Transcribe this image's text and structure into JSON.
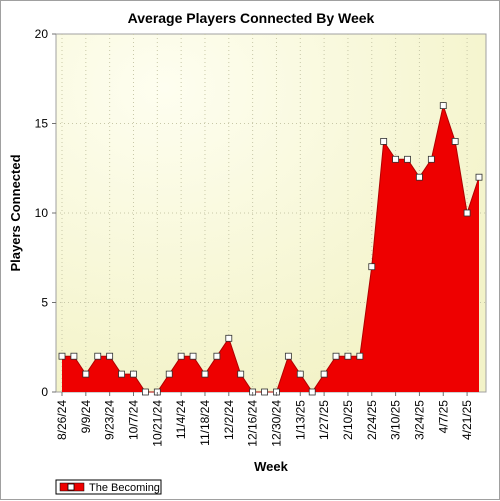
{
  "chart_data": {
    "type": "area",
    "title": "Average Players Connected By Week",
    "xlabel": "Week",
    "ylabel": "Players Connected",
    "ylim": [
      0,
      20
    ],
    "yticks": [
      0,
      5,
      10,
      15,
      20
    ],
    "x_tick_labels": [
      "8/26/24",
      "9/9/24",
      "9/23/24",
      "10/7/24",
      "10/21/24",
      "11/4/24",
      "11/18/24",
      "12/2/24",
      "12/16/24",
      "12/30/24",
      "1/13/25",
      "1/27/25",
      "2/10/25",
      "2/24/25",
      "3/10/25",
      "3/24/25",
      "4/7/25",
      "4/21/25"
    ],
    "x": [
      "8/26/24",
      "9/2/24",
      "9/9/24",
      "9/16/24",
      "9/23/24",
      "9/30/24",
      "10/7/24",
      "10/14/24",
      "10/21/24",
      "10/28/24",
      "11/4/24",
      "11/11/24",
      "11/18/24",
      "11/25/24",
      "12/2/24",
      "12/9/24",
      "12/16/24",
      "12/23/24",
      "12/30/24",
      "1/6/25",
      "1/13/25",
      "1/20/25",
      "1/27/25",
      "2/3/25",
      "2/10/25",
      "2/17/25",
      "2/24/25",
      "3/3/25",
      "3/10/25",
      "3/17/25",
      "3/24/25",
      "3/31/25",
      "4/7/25",
      "4/14/25",
      "4/21/25",
      "4/28/25"
    ],
    "series": [
      {
        "name": "The Becoming",
        "color": "#ee0000",
        "values": [
          2,
          2,
          1,
          2,
          2,
          1,
          1,
          0,
          0,
          1,
          2,
          2,
          1,
          2,
          3,
          1,
          0,
          0,
          0,
          2,
          1,
          0,
          1,
          2,
          2,
          2,
          7,
          14,
          13,
          13,
          12,
          13,
          16,
          14,
          10,
          12
        ]
      }
    ],
    "grid": true,
    "legend_position": "bottom-left"
  },
  "colors": {
    "plot_bg_center": "#fdfde8",
    "plot_bg_edge": "#f5f5d0",
    "grid": "#c8c8a8",
    "series": "#ee0000"
  }
}
